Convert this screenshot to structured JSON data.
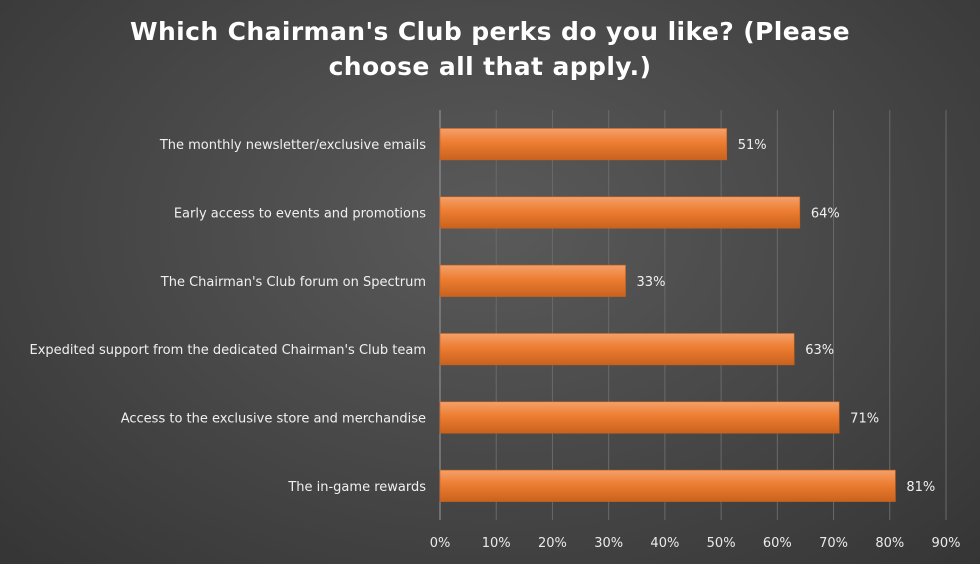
{
  "chart_data": {
    "type": "bar",
    "orientation": "horizontal",
    "title": "Which Chairman's Club perks do you like? (Please choose all that apply.)",
    "categories": [
      "The monthly newsletter/exclusive emails",
      "Early access to events and promotions",
      "The Chairman's Club forum on Spectrum",
      "Expedited support from the dedicated Chairman's Club team",
      "Access to the exclusive store and merchandise",
      "The in-game rewards"
    ],
    "values": [
      51,
      64,
      33,
      63,
      71,
      81
    ],
    "data_labels": [
      "51%",
      "64%",
      "33%",
      "63%",
      "71%",
      "81%"
    ],
    "xlim": [
      0,
      90
    ],
    "xticks": [
      0,
      10,
      20,
      30,
      40,
      50,
      60,
      70,
      80,
      90
    ],
    "xtick_labels": [
      "0%",
      "10%",
      "20%",
      "30%",
      "40%",
      "50%",
      "60%",
      "70%",
      "80%",
      "90%"
    ],
    "grid": true,
    "legend": "none",
    "colors": {
      "bar": "#ed7d31",
      "bar_light": "#f4a06a",
      "bar_dark": "#c9621e",
      "gridline": "#6a6a6a",
      "axis": "#9a9a9a"
    }
  }
}
